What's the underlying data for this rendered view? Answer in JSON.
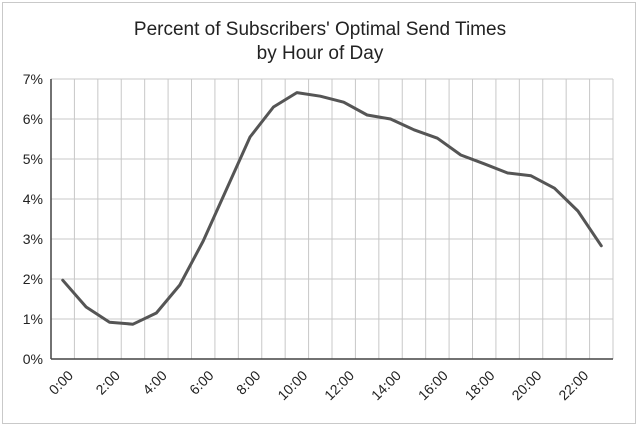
{
  "chart_data": {
    "type": "line",
    "title_line1": "Percent of Subscribers' Optimal Send Times",
    "title_line2": "by Hour of Day",
    "xlabel": "",
    "ylabel": "",
    "ylim": [
      0,
      7
    ],
    "yticks": [
      "0%",
      "1%",
      "2%",
      "3%",
      "4%",
      "5%",
      "6%",
      "7%"
    ],
    "xticks": [
      "0:00",
      "2:00",
      "4:00",
      "6:00",
      "8:00",
      "10:00",
      "12:00",
      "14:00",
      "16:00",
      "18:00",
      "20:00",
      "22:00"
    ],
    "x": [
      0,
      1,
      2,
      3,
      4,
      5,
      6,
      7,
      8,
      9,
      10,
      11,
      12,
      13,
      14,
      15,
      16,
      17,
      18,
      19,
      20,
      21,
      22,
      23
    ],
    "series": [
      {
        "values": [
          1.97,
          1.3,
          0.92,
          0.87,
          1.15,
          1.85,
          2.95,
          4.25,
          5.55,
          6.3,
          6.66,
          6.57,
          6.42,
          6.1,
          6.0,
          5.73,
          5.52,
          5.1,
          4.88,
          4.65,
          4.58,
          4.27,
          3.7,
          2.83
        ],
        "color": "#555555"
      }
    ],
    "grid": true,
    "legend": "none"
  }
}
